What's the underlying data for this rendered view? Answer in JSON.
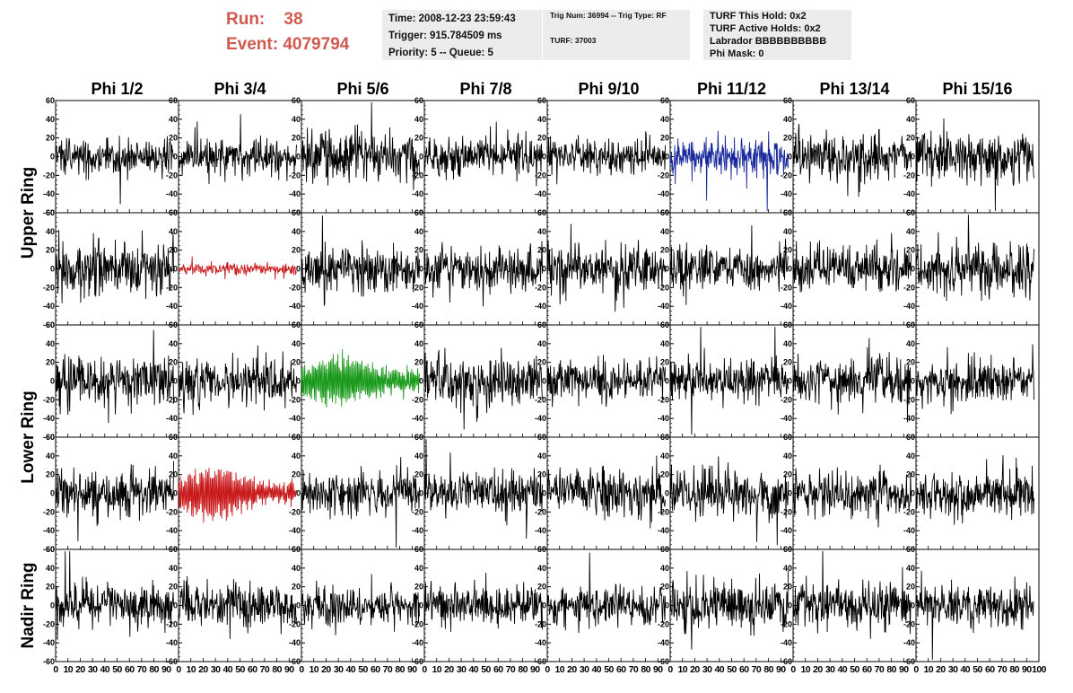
{
  "header": {
    "run_label": "Run:",
    "run_value": "38",
    "event_label": "Event:",
    "event_value": "4079794"
  },
  "info_box_1": {
    "time": "Time: 2008-12-23 23:59:43",
    "trigger": "Trigger: 915.784509 ms",
    "priority": "Priority: 5 -- Queue: 5"
  },
  "info_box_2": {
    "trig": "Trig Num: 36994 -- Trig Type: RF",
    "turf": "TURF: 37003"
  },
  "info_box_3": {
    "this_hold": "TURF This Hold: 0x2",
    "active_holds": "TURF Active Holds: 0x2",
    "labrador": "Labrador BBBBBBBBBB",
    "phi_mask": "Phi Mask: 0"
  },
  "colors": {
    "trace_default": "#000000",
    "trace_blue": "#1a2a9c",
    "trace_red": "#c8191b",
    "trace_green": "#1a9a1a",
    "header_red": "#d05a50",
    "info_bg": "#ececec"
  },
  "chart_data": {
    "type": "line",
    "columns": [
      "Phi 1/2",
      "Phi 3/4",
      "Phi 5/6",
      "Phi 7/8",
      "Phi 9/10",
      "Phi 11/12",
      "Phi 13/14",
      "Phi 15/16"
    ],
    "ring_labels": [
      {
        "text": "Upper Ring",
        "rows": [
          0,
          1
        ]
      },
      {
        "text": "Lower Ring",
        "rows": [
          2,
          3
        ]
      },
      {
        "text": "Nadir Ring",
        "rows": [
          4,
          4
        ]
      }
    ],
    "ylim": [
      -60,
      60
    ],
    "yticks": [
      -60,
      -40,
      -20,
      0,
      20,
      40,
      60
    ],
    "xlim": [
      0,
      100
    ],
    "xtick_text": [
      "0",
      "10",
      "20",
      "30",
      "40",
      "50",
      "60",
      "70",
      "80",
      "90",
      "100"
    ],
    "grid": false,
    "samples": 260,
    "trace_x_max": 96,
    "rows": [
      [
        {
          "amp": 10,
          "burst": 0,
          "color": "trace_default"
        },
        {
          "amp": 10,
          "burst": 0,
          "color": "trace_default"
        },
        {
          "amp": 13,
          "burst": 0,
          "color": "trace_default"
        },
        {
          "amp": 10,
          "burst": 0,
          "color": "trace_default"
        },
        {
          "amp": 10,
          "burst": 0,
          "color": "trace_default"
        },
        {
          "amp": 9,
          "burst": 0,
          "color": "trace_blue"
        },
        {
          "amp": 12,
          "burst": 0,
          "color": "trace_default"
        },
        {
          "amp": 13,
          "burst": 0,
          "color": "trace_default"
        }
      ],
      [
        {
          "amp": 14,
          "burst": 0,
          "color": "trace_default"
        },
        {
          "amp": 3,
          "burst": 0,
          "color": "trace_red"
        },
        {
          "amp": 13,
          "burst": 0,
          "color": "trace_default"
        },
        {
          "amp": 12,
          "burst": 0,
          "color": "trace_default"
        },
        {
          "amp": 12,
          "burst": 0,
          "color": "trace_default"
        },
        {
          "amp": 12,
          "burst": 0,
          "color": "trace_default"
        },
        {
          "amp": 12,
          "burst": 0,
          "color": "trace_default"
        },
        {
          "amp": 13,
          "burst": 0,
          "color": "trace_default"
        }
      ],
      [
        {
          "amp": 13,
          "burst": 0,
          "color": "trace_default"
        },
        {
          "amp": 13,
          "burst": 0,
          "color": "trace_default"
        },
        {
          "amp": 10,
          "burst": 20,
          "color": "trace_green"
        },
        {
          "amp": 13,
          "burst": 0,
          "color": "trace_default"
        },
        {
          "amp": 11,
          "burst": 0,
          "color": "trace_default"
        },
        {
          "amp": 11,
          "burst": 0,
          "color": "trace_default"
        },
        {
          "amp": 12,
          "burst": 0,
          "color": "trace_default"
        },
        {
          "amp": 12,
          "burst": 0,
          "color": "trace_default"
        }
      ],
      [
        {
          "amp": 12,
          "burst": 0,
          "color": "trace_default"
        },
        {
          "amp": 9,
          "burst": 22,
          "color": "trace_red"
        },
        {
          "amp": 12,
          "burst": 0,
          "color": "trace_default"
        },
        {
          "amp": 12,
          "burst": 0,
          "color": "trace_default"
        },
        {
          "amp": 12,
          "burst": 0,
          "color": "trace_default"
        },
        {
          "amp": 13,
          "burst": 0,
          "color": "trace_default"
        },
        {
          "amp": 12,
          "burst": 0,
          "color": "trace_default"
        },
        {
          "amp": 12,
          "burst": 0,
          "color": "trace_default"
        }
      ],
      [
        {
          "amp": 12,
          "burst": 0,
          "color": "trace_default"
        },
        {
          "amp": 12,
          "burst": 0,
          "color": "trace_default"
        },
        {
          "amp": 11,
          "burst": 0,
          "color": "trace_default"
        },
        {
          "amp": 11,
          "burst": 0,
          "color": "trace_default"
        },
        {
          "amp": 11,
          "burst": 0,
          "color": "trace_default"
        },
        {
          "amp": 13,
          "burst": 0,
          "color": "trace_default"
        },
        {
          "amp": 13,
          "burst": 0,
          "color": "trace_default"
        },
        {
          "amp": 11,
          "burst": 0,
          "color": "trace_default"
        }
      ]
    ]
  }
}
